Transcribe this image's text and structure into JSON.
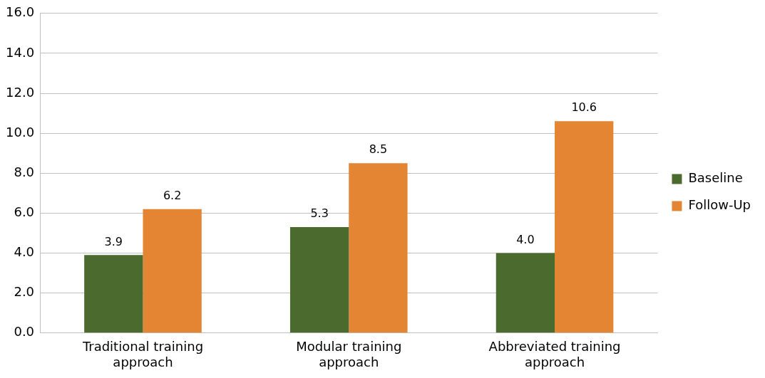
{
  "chart_data": {
    "type": "bar",
    "categories": [
      "Traditional training approach",
      "Modular training approach",
      "Abbreviated training approach"
    ],
    "series": [
      {
        "name": "Baseline",
        "color": "#4a6a2e",
        "values": [
          3.9,
          5.3,
          4.0
        ],
        "value_labels": [
          "3.9",
          "5.3",
          "4.0"
        ]
      },
      {
        "name": "Follow-Up",
        "color": "#e38533",
        "values": [
          6.2,
          8.5,
          10.6
        ],
        "value_labels": [
          "6.2",
          "8.5",
          "10.6"
        ]
      }
    ],
    "ylim": [
      0,
      16
    ],
    "yticks": [
      {
        "value": 0,
        "label": "0.0"
      },
      {
        "value": 2,
        "label": "2.0"
      },
      {
        "value": 4,
        "label": "4.0"
      },
      {
        "value": 6,
        "label": "6.0"
      },
      {
        "value": 8,
        "label": "8.0"
      },
      {
        "value": 10,
        "label": "10.0"
      },
      {
        "value": 12,
        "label": "12.0"
      },
      {
        "value": 14,
        "label": "14.0"
      },
      {
        "value": 16,
        "label": "16.0"
      }
    ],
    "grid": "y",
    "legend": "right"
  }
}
